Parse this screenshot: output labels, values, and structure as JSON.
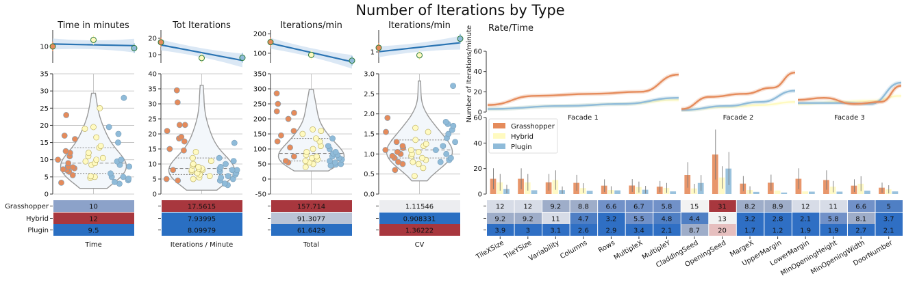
{
  "title": "Number of Iterations by Type",
  "colors": {
    "Grasshopper": "#E58B5B",
    "Hybrid": "#FFFAC0",
    "Plugin": "#8FBBD9",
    "trend": "#2A74B3",
    "violin_fill": "#F3F7FB",
    "violin_edge": "#999999"
  },
  "panels": [
    {
      "title": "Time in minutes",
      "table_label": "Time",
      "trend_ticks": [
        10
      ],
      "violin_ticks": [
        0,
        5,
        10,
        15,
        20,
        25,
        30,
        35
      ],
      "table": [
        {
          "row": "Grasshopper",
          "value": "10"
        },
        {
          "row": "Hybrid",
          "value": "12"
        },
        {
          "row": "Plugin",
          "value": "9.5"
        }
      ]
    },
    {
      "title": "Tot Iterations",
      "table_label": "Iterations / Minute",
      "trend_ticks": [
        10,
        20
      ],
      "violin_ticks": [
        0,
        5,
        10,
        15,
        20,
        25,
        30,
        35,
        40
      ],
      "table": [
        {
          "row": "Grasshopper",
          "value": "17.5615"
        },
        {
          "row": "Hybrid",
          "value": "7.93995"
        },
        {
          "row": "Plugin",
          "value": "8.09979"
        }
      ]
    },
    {
      "title": "Iterations/min",
      "table_label": "Total",
      "trend_ticks": [
        100,
        200
      ],
      "violin_ticks": [
        -50,
        0,
        50,
        100,
        150,
        200,
        250,
        300,
        350
      ],
      "table": [
        {
          "row": "Grasshopper",
          "value": "157.714"
        },
        {
          "row": "Hybrid",
          "value": "91.3077"
        },
        {
          "row": "Plugin",
          "value": "61.6429"
        }
      ]
    },
    {
      "title": "Iterations/min",
      "table_label": "CV",
      "trend_ticks": [
        1
      ],
      "violin_ticks": [
        "0.0",
        "0.5",
        "1.0",
        "1.5",
        "2.0",
        "2.5",
        "3.0"
      ],
      "table": [
        {
          "row": "Grasshopper",
          "value": "1.11546"
        },
        {
          "row": "Hybrid",
          "value": "0.908331"
        },
        {
          "row": "Plugin",
          "value": "1.36222"
        }
      ]
    }
  ],
  "table_rows": [
    "Grasshopper",
    "Hybrid",
    "Plugin"
  ],
  "rate": {
    "title": "Rate/Time",
    "ylabel": "Number of Iterations/minute",
    "yticks": [
      0,
      20,
      40,
      60
    ],
    "facades": [
      "Facade 1",
      "Facade 2",
      "Facade 3"
    ]
  },
  "legend": [
    "Grasshopper",
    "Hybrid",
    "Plugin"
  ],
  "params": {
    "yticks": [
      0,
      20,
      40,
      60
    ],
    "categories": [
      "TileXSize",
      "TileYSize",
      "Variability",
      "Columns",
      "Rows",
      "MultipleX",
      "MultipleY",
      "CladdingSeed",
      "OpeningSeed",
      "MargeX",
      "UpperMargin",
      "LowerMargin",
      "MinOpeningHeight",
      "MinOpeningWidth",
      "DoorNumber"
    ],
    "table": {
      "Grasshopper": [
        "12",
        "12",
        "9.2",
        "8.8",
        "6.6",
        "6.7",
        "5.8",
        "15",
        "31",
        "8.2",
        "8.9",
        "12",
        "11",
        "6.6",
        "5"
      ],
      "Hybrid": [
        "9.2",
        "9.2",
        "11",
        "4.7",
        "3.2",
        "5.5",
        "4.8",
        "4.4",
        "13",
        "3.2",
        "2.8",
        "2.1",
        "5.8",
        "8.1",
        "3.7"
      ],
      "Plugin": [
        "3.9",
        "3",
        "3.1",
        "2.6",
        "2.9",
        "3.4",
        "2.1",
        "8.7",
        "20",
        "1.7",
        "1.2",
        "1.9",
        "1.9",
        "2.7",
        "2.1"
      ]
    }
  },
  "chart_data": [
    {
      "type": "scatter",
      "title": "Time in minutes",
      "ylim": [
        0,
        35
      ],
      "series": [
        {
          "name": "Grasshopper",
          "values": [
            3.3,
            5.5,
            6.5,
            7,
            7.2,
            7.5,
            7.8,
            8,
            8,
            9,
            10,
            11,
            12,
            12.5,
            16,
            17,
            23
          ]
        },
        {
          "name": "Hybrid",
          "values": [
            4.7,
            5,
            5.2,
            8.5,
            9,
            9.5,
            10,
            10.5,
            11,
            12,
            13.5,
            14,
            16.5,
            19,
            19.5,
            25
          ]
        },
        {
          "name": "Plugin",
          "values": [
            3,
            3.5,
            4,
            4.5,
            5,
            5,
            6,
            8,
            8.5,
            9.5,
            10,
            15,
            17.5,
            19.5,
            28
          ]
        }
      ]
    },
    {
      "type": "scatter",
      "title": "Tot Iterations",
      "ylim": [
        0,
        40
      ],
      "series": [
        {
          "name": "Grasshopper",
          "values": [
            4.5,
            5,
            8,
            14.5,
            15,
            17.5,
            18.5,
            19,
            21,
            23,
            23,
            30.5,
            34.5
          ]
        },
        {
          "name": "Hybrid",
          "values": [
            5,
            5.5,
            6,
            6.5,
            7,
            7.5,
            8,
            8,
            8.5,
            8.5,
            9,
            9.5,
            10,
            11,
            12,
            14
          ]
        },
        {
          "name": "Plugin",
          "values": [
            3,
            3.5,
            4.5,
            5,
            5.5,
            6,
            6.5,
            7,
            7.5,
            8,
            8,
            8.5,
            9,
            10,
            11,
            12,
            17
          ]
        }
      ]
    },
    {
      "type": "scatter",
      "title": "Iterations/min",
      "ylim": [
        -50,
        350
      ],
      "series": [
        {
          "name": "Grasshopper",
          "values": [
            55,
            60,
            75,
            105,
            125,
            145,
            160,
            200,
            220,
            225,
            250,
            285
          ]
        },
        {
          "name": "Hybrid",
          "values": [
            40,
            50,
            55,
            60,
            65,
            70,
            75,
            80,
            90,
            100,
            110,
            125,
            135,
            150,
            160,
            165
          ]
        },
        {
          "name": "Plugin",
          "values": [
            45,
            48,
            50,
            55,
            60,
            65,
            70,
            75,
            80,
            85,
            90,
            100,
            110,
            135
          ]
        }
      ]
    },
    {
      "type": "scatter",
      "title": "Iterations/min",
      "ylim": [
        0,
        3
      ],
      "series": [
        {
          "name": "Grasshopper",
          "values": [
            0.6,
            0.75,
            0.8,
            0.9,
            0.95,
            1,
            1.05,
            1.1,
            1.15,
            1.2,
            1.3,
            1.55,
            1.9
          ]
        },
        {
          "name": "Hybrid",
          "values": [
            0.45,
            0.65,
            0.75,
            0.8,
            0.85,
            0.9,
            0.95,
            1,
            1.05,
            1.1,
            1.2,
            1.25,
            1.35,
            1.55,
            1.65
          ]
        },
        {
          "name": "Plugin",
          "values": [
            0.8,
            0.85,
            0.9,
            1,
            1.1,
            1.2,
            1.3,
            1.4,
            1.5,
            1.6,
            1.7,
            1.75,
            1.8,
            2.7
          ]
        }
      ]
    },
    {
      "type": "bar",
      "categories": [
        "TileXSize",
        "TileYSize",
        "Variability",
        "Columns",
        "Rows",
        "MultipleX",
        "MultipleY",
        "CladdingSeed",
        "OpeningSeed",
        "MargeX",
        "UpperMargin",
        "LowerMargin",
        "MinOpeningHeight",
        "MinOpeningWidth",
        "DoorNumber"
      ],
      "ylim": [
        0,
        60
      ],
      "series": [
        {
          "name": "Grasshopper",
          "values": [
            12,
            12,
            9.2,
            8.8,
            6.6,
            6.7,
            5.8,
            15,
            31,
            8.2,
            8.9,
            12,
            11,
            6.6,
            5
          ]
        },
        {
          "name": "Hybrid",
          "values": [
            9.2,
            9.2,
            11,
            4.7,
            3.2,
            5.5,
            4.8,
            4.4,
            13,
            3.2,
            2.8,
            2.1,
            5.8,
            8.1,
            3.7
          ]
        },
        {
          "name": "Plugin",
          "values": [
            3.9,
            3,
            3.1,
            2.6,
            2.9,
            3.4,
            2.1,
            8.7,
            20,
            1.7,
            1.2,
            1.9,
            1.9,
            2.7,
            2.1
          ]
        }
      ]
    }
  ]
}
